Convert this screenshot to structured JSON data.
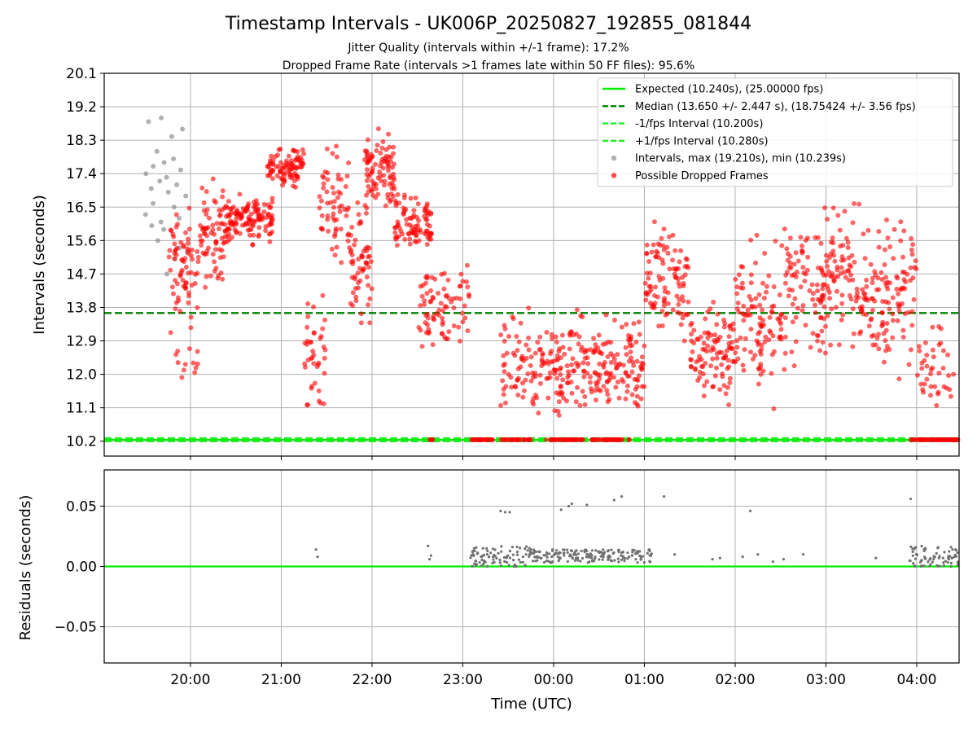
{
  "colors": {
    "expected": "#00ee00",
    "median": "#008000",
    "fps_bounds": "#22ee22",
    "intervals": "#909090",
    "dropped": "#ff0000",
    "residuals": "#707070",
    "grid": "#b0b0b0"
  },
  "chart_data": [
    {
      "type": "scatter",
      "title": "Timestamp Intervals - UK006P_20250827_192855_081844",
      "subtitle_lines": [
        "Jitter Quality (intervals within +/-1 frame): 17.2%",
        "Dropped Frame Rate (intervals >1 frames late within 50 FF files): 95.6%"
      ],
      "ylabel": "Intervals (seconds)",
      "xlabel": "",
      "yticks": [
        "10.2",
        "11.1",
        "12.0",
        "12.9",
        "13.8",
        "14.7",
        "15.6",
        "16.5",
        "17.4",
        "18.3",
        "19.2",
        "20.1"
      ],
      "ylim": [
        9.8,
        20.1
      ],
      "xlim": [
        "19:03",
        "04:28"
      ],
      "grid": true,
      "legend_position": "upper right",
      "reference_lines": [
        {
          "name": "Expected (10.240s), (25.00000 fps)",
          "y": 10.24,
          "style": "solid",
          "color": "#00ee00"
        },
        {
          "name": "Median (13.650 +/- 2.447 s), (18.75424 +/- 3.56 fps)",
          "y": 13.65,
          "style": "dashed",
          "color": "#008000"
        },
        {
          "name": "-1/fps Interval (10.200s)",
          "y": 10.2,
          "style": "dashed",
          "color": "#22ee22"
        },
        {
          "name": "+1/fps Interval (10.280s)",
          "y": 10.28,
          "style": "dashed",
          "color": "#22ee22"
        }
      ],
      "series": [
        {
          "name": "Intervals, max (19.210s), min (10.239s)",
          "marker": "circle",
          "color": "#909090",
          "points": [
            [
              "19:30",
              16.3
            ],
            [
              "19:31",
              17.4
            ],
            [
              "19:32",
              18.8
            ],
            [
              "19:33",
              17.0
            ],
            [
              "19:34",
              16.0
            ],
            [
              "19:35",
              17.6
            ],
            [
              "19:36",
              16.6
            ],
            [
              "19:37",
              18.0
            ],
            [
              "19:38",
              15.6
            ],
            [
              "19:39",
              17.2
            ],
            [
              "19:40",
              16.1
            ],
            [
              "19:41",
              18.9
            ],
            [
              "19:42",
              17.7
            ],
            [
              "19:43",
              15.9
            ],
            [
              "19:44",
              17.3
            ],
            [
              "19:45",
              14.7
            ],
            [
              "19:46",
              16.9
            ],
            [
              "19:47",
              18.4
            ],
            [
              "19:48",
              17.8
            ],
            [
              "19:49",
              15.1
            ],
            [
              "19:50",
              16.5
            ],
            [
              "19:51",
              17.1
            ],
            [
              "19:52",
              16.2
            ],
            [
              "19:53",
              15.4
            ],
            [
              "19:54",
              17.5
            ],
            [
              "19:55",
              18.6
            ],
            [
              "19:56",
              16.8
            ],
            [
              "19:57",
              15.3
            ]
          ]
        },
        {
          "name": "Possible Dropped Frames",
          "marker": "circle",
          "color": "#ff0000",
          "clusters": [
            {
              "x_from": "19:45",
              "x_to": "20:05",
              "y_center": 14.8,
              "y_spread": 1.6,
              "count": 70
            },
            {
              "x_from": "19:50",
              "x_to": "20:05",
              "y_center": 12.3,
              "y_spread": 0.4,
              "count": 12
            },
            {
              "x_from": "20:05",
              "x_to": "20:25",
              "y_center": 15.8,
              "y_spread": 1.3,
              "count": 80
            },
            {
              "x_from": "20:25",
              "x_to": "20:55",
              "y_center": 16.2,
              "y_spread": 0.6,
              "count": 120
            },
            {
              "x_from": "20:50",
              "x_to": "21:15",
              "y_center": 17.6,
              "y_spread": 0.5,
              "count": 90
            },
            {
              "x_from": "21:15",
              "x_to": "21:30",
              "y_center": 12.6,
              "y_spread": 1.4,
              "count": 40
            },
            {
              "x_from": "21:25",
              "x_to": "21:45",
              "y_center": 16.5,
              "y_spread": 1.5,
              "count": 60
            },
            {
              "x_from": "21:45",
              "x_to": "22:00",
              "y_center": 15.0,
              "y_spread": 1.6,
              "count": 60
            },
            {
              "x_from": "21:55",
              "x_to": "22:15",
              "y_center": 17.4,
              "y_spread": 1.0,
              "count": 90
            },
            {
              "x_from": "22:15",
              "x_to": "22:40",
              "y_center": 16.0,
              "y_spread": 0.8,
              "count": 90
            },
            {
              "x_from": "22:30",
              "x_to": "23:05",
              "y_center": 13.8,
              "y_spread": 1.2,
              "count": 80
            },
            {
              "x_from": "23:25",
              "x_to": "00:00",
              "y_center": 12.2,
              "y_spread": 1.3,
              "count": 90
            },
            {
              "x_from": "00:00",
              "x_to": "00:30",
              "y_center": 12.2,
              "y_spread": 1.3,
              "count": 100
            },
            {
              "x_from": "00:30",
              "x_to": "01:00",
              "y_center": 12.3,
              "y_spread": 1.3,
              "count": 100
            },
            {
              "x_from": "01:00",
              "x_to": "01:30",
              "y_center": 14.5,
              "y_spread": 1.6,
              "count": 100
            },
            {
              "x_from": "01:30",
              "x_to": "02:00",
              "y_center": 12.6,
              "y_spread": 1.3,
              "count": 100
            },
            {
              "x_from": "02:00",
              "x_to": "02:30",
              "y_center": 13.5,
              "y_spread": 2.0,
              "count": 100
            },
            {
              "x_from": "02:30",
              "x_to": "03:00",
              "y_center": 14.2,
              "y_spread": 2.0,
              "count": 100
            },
            {
              "x_from": "03:00",
              "x_to": "03:30",
              "y_center": 14.6,
              "y_spread": 1.8,
              "count": 100
            },
            {
              "x_from": "03:30",
              "x_to": "04:00",
              "y_center": 14.2,
              "y_spread": 1.9,
              "count": 100
            },
            {
              "x_from": "04:00",
              "x_to": "04:25",
              "y_center": 12.4,
              "y_spread": 1.3,
              "count": 40
            },
            {
              "x_from": "22:37",
              "x_to": "22:40",
              "y_center": 10.24,
              "y_spread": 0.0,
              "count": 8
            },
            {
              "x_from": "23:05",
              "x_to": "23:20",
              "y_center": 10.24,
              "y_spread": 0.0,
              "count": 30
            },
            {
              "x_from": "23:25",
              "x_to": "23:45",
              "y_center": 10.24,
              "y_spread": 0.0,
              "count": 30
            },
            {
              "x_from": "23:55",
              "x_to": "00:20",
              "y_center": 10.24,
              "y_spread": 0.0,
              "count": 40
            },
            {
              "x_from": "00:25",
              "x_to": "00:50",
              "y_center": 10.24,
              "y_spread": 0.0,
              "count": 40
            },
            {
              "x_from": "03:55",
              "x_to": "04:28",
              "y_center": 10.24,
              "y_spread": 0.0,
              "count": 60
            }
          ]
        }
      ]
    },
    {
      "type": "scatter",
      "title": "",
      "ylabel": "Residuals (seconds)",
      "xlabel": "Time (UTC)",
      "xticks": [
        "20:00",
        "21:00",
        "22:00",
        "23:00",
        "00:00",
        "01:00",
        "02:00",
        "03:00",
        "04:00"
      ],
      "yticks": [
        "−0.05",
        "0.00",
        "0.05"
      ],
      "ylim": [
        -0.08,
        0.08
      ],
      "xlim": [
        "19:03",
        "04:28"
      ],
      "grid": true,
      "reference_lines": [
        {
          "y": 0.0,
          "style": "solid",
          "color": "#00ee00"
        }
      ],
      "series": [
        {
          "color": "#707070",
          "marker": "point",
          "points": [
            [
              "21:23",
              0.014
            ],
            [
              "21:24",
              0.008
            ],
            [
              "22:37",
              0.017
            ],
            [
              "22:38",
              0.006
            ],
            [
              "22:39",
              0.009
            ],
            [
              "23:25",
              0.046
            ],
            [
              "23:28",
              0.045
            ],
            [
              "23:31",
              0.045
            ],
            [
              "00:05",
              0.047
            ],
            [
              "00:10",
              0.05
            ],
            [
              "00:12",
              0.052
            ],
            [
              "00:22",
              0.051
            ],
            [
              "00:40",
              0.055
            ],
            [
              "00:45",
              0.058
            ],
            [
              "01:13",
              0.058
            ],
            [
              "02:10",
              0.046
            ],
            [
              "01:20",
              0.01
            ],
            [
              "01:45",
              0.006
            ],
            [
              "01:50",
              0.007
            ],
            [
              "02:05",
              0.008
            ],
            [
              "02:15",
              0.01
            ],
            [
              "02:25",
              0.004
            ],
            [
              "02:32",
              0.006
            ],
            [
              "02:45",
              0.01
            ],
            [
              "03:33",
              0.007
            ],
            [
              "03:56",
              0.056
            ]
          ],
          "dense_bands": [
            {
              "x_from": "23:05",
              "x_to": "23:45",
              "y_min": 0.0,
              "y_max": 0.017
            },
            {
              "x_from": "23:45",
              "x_to": "01:05",
              "y_min": 0.003,
              "y_max": 0.014
            },
            {
              "x_from": "03:55",
              "x_to": "04:28",
              "y_min": 0.0,
              "y_max": 0.017
            }
          ]
        }
      ]
    }
  ]
}
